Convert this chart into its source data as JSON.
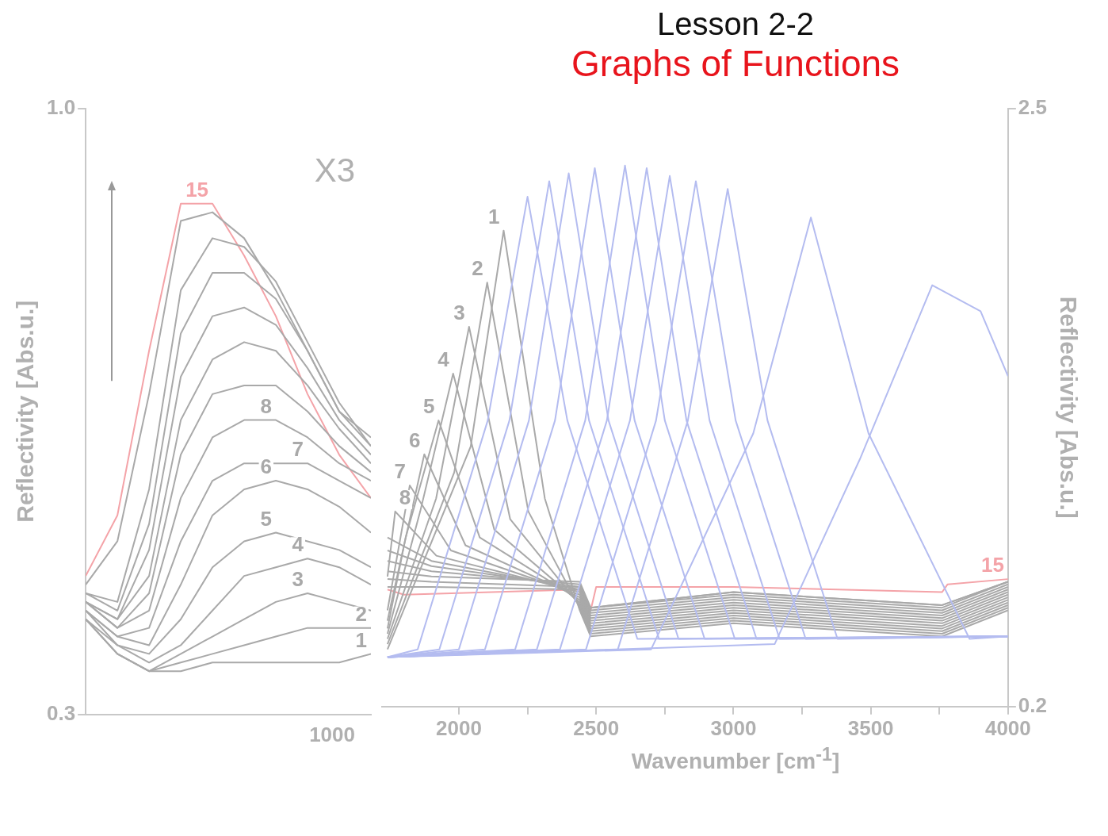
{
  "chart_data": [
    {
      "type": "line",
      "ylabel": "Reflectivity [Abs.u.]",
      "annotations": [
        "X3",
        "1000"
      ],
      "categories": [
        null,
        null,
        null,
        null,
        null,
        null,
        null,
        null,
        null,
        null
      ],
      "ylim": [
        0.3,
        1.0
      ],
      "yticks": [
        0.3,
        {
          "value": 1.0,
          "label": "1.0"
        }
      ],
      "series": [
        {
          "name": "1",
          "color": "#a9a9a9",
          "values": [
            0.41,
            0.37,
            0.35,
            0.35,
            0.36,
            0.36,
            0.36,
            0.36,
            0.36,
            0.37
          ]
        },
        {
          "name": "2",
          "color": "#a9a9a9",
          "values": [
            0.41,
            0.37,
            0.35,
            0.36,
            0.37,
            0.38,
            0.39,
            0.4,
            0.4,
            0.4
          ]
        },
        {
          "name": "3",
          "color": "#a9a9a9",
          "values": [
            0.41,
            0.37,
            0.35,
            0.37,
            0.39,
            0.41,
            0.43,
            0.44,
            0.43,
            0.42
          ]
        },
        {
          "name": "4",
          "color": "#a9a9a9",
          "values": [
            0.41,
            0.38,
            0.36,
            0.38,
            0.42,
            0.46,
            0.47,
            0.48,
            0.47,
            0.45
          ]
        },
        {
          "name": "5",
          "color": "#a9a9a9",
          "values": [
            0.42,
            0.38,
            0.37,
            0.41,
            0.47,
            0.5,
            0.51,
            0.5,
            0.49,
            0.47
          ]
        },
        {
          "name": "6",
          "color": "#a9a9a9",
          "values": [
            0.42,
            0.39,
            0.38,
            0.45,
            0.53,
            0.56,
            0.57,
            0.56,
            0.54,
            0.51
          ]
        },
        {
          "name": "7",
          "color": "#a9a9a9",
          "values": [
            0.42,
            0.39,
            0.4,
            0.5,
            0.57,
            0.59,
            0.59,
            0.59,
            0.57,
            0.55
          ]
        },
        {
          "name": "8",
          "color": "#a9a9a9",
          "values": [
            0.43,
            0.4,
            0.42,
            0.55,
            0.62,
            0.64,
            0.64,
            0.62,
            0.59,
            0.57
          ]
        },
        {
          "color": "#a9a9a9",
          "values": [
            0.43,
            0.4,
            0.44,
            0.6,
            0.67,
            0.68,
            0.68,
            0.65,
            0.61,
            0.58
          ]
        },
        {
          "color": "#a9a9a9",
          "values": [
            0.43,
            0.41,
            0.46,
            0.64,
            0.71,
            0.73,
            0.72,
            0.68,
            0.63,
            0.59
          ]
        },
        {
          "color": "#a9a9a9",
          "values": [
            0.43,
            0.41,
            0.49,
            0.69,
            0.76,
            0.77,
            0.75,
            0.7,
            0.64,
            0.6
          ]
        },
        {
          "color": "#a9a9a9",
          "values": [
            0.44,
            0.42,
            0.52,
            0.74,
            0.81,
            0.81,
            0.78,
            0.72,
            0.65,
            0.61
          ]
        },
        {
          "color": "#a9a9a9",
          "values": [
            0.44,
            0.43,
            0.56,
            0.79,
            0.85,
            0.84,
            0.8,
            0.73,
            0.66,
            0.61
          ]
        },
        {
          "color": "#a9a9a9",
          "values": [
            0.45,
            0.5,
            0.67,
            0.87,
            0.88,
            0.85,
            0.79,
            0.72,
            0.65,
            0.62
          ]
        },
        {
          "name": "15",
          "color": "#f4a3a8",
          "values": [
            0.46,
            0.53,
            0.72,
            0.89,
            0.89,
            0.83,
            0.76,
            0.67,
            0.6,
            0.55
          ]
        }
      ]
    },
    {
      "type": "line",
      "title": "Lesson 2-2",
      "subtitle": "Graphs of Functions",
      "xlabel": "Wavenumber [cm$^{-1}$]",
      "y2label": "Reflectivity [Abs.u.]",
      "xlim": [
        1720,
        4000
      ],
      "xticks": [
        2000,
        {
          "value": 2250,
          "label": null
        },
        2500,
        {
          "value": 2750,
          "label": null
        },
        3000,
        {
          "value": 3250,
          "label": null
        },
        3500,
        {
          "value": 3750,
          "label": null
        },
        4000
      ],
      "y2lim": [
        0.2,
        2.5
      ],
      "y2ticks": [
        0.2,
        2.5
      ],
      "series": [
        {
          "color": "#b4bcf0",
          "axis": "y2",
          "x": [
            1740,
            1850,
            2105,
            2250,
            2395,
            2650,
            4000
          ],
          "values": [
            0.39,
            0.42,
            1.3,
            2.16,
            1.3,
            0.46,
            0.47
          ]
        },
        {
          "color": "#b4bcf0",
          "axis": "y2",
          "x": [
            1740,
            1929,
            2184,
            2329,
            2474,
            2729,
            4000
          ],
          "values": [
            0.39,
            0.42,
            1.3,
            2.22,
            1.3,
            0.46,
            0.47
          ]
        },
        {
          "color": "#b4bcf0",
          "axis": "y2",
          "x": [
            1740,
            2000,
            2255,
            2400,
            2545,
            2800,
            4000
          ],
          "values": [
            0.39,
            0.42,
            1.3,
            2.25,
            1.3,
            0.46,
            0.47
          ]
        },
        {
          "color": "#b4bcf0",
          "axis": "y2",
          "x": [
            1740,
            2095,
            2350,
            2495,
            2640,
            2895,
            4000
          ],
          "values": [
            0.39,
            0.42,
            1.3,
            2.27,
            1.3,
            0.46,
            0.47
          ]
        },
        {
          "color": "#b4bcf0",
          "axis": "y2",
          "x": [
            1740,
            2205,
            2460,
            2605,
            2750,
            3005,
            4000
          ],
          "values": [
            0.39,
            0.42,
            1.3,
            2.28,
            1.3,
            0.46,
            0.47
          ]
        },
        {
          "color": "#b4bcf0",
          "axis": "y2",
          "x": [
            1740,
            2284,
            2539,
            2684,
            2829,
            3084,
            4000
          ],
          "values": [
            0.39,
            0.42,
            1.3,
            2.27,
            1.3,
            0.46,
            0.47
          ]
        },
        {
          "color": "#b4bcf0",
          "axis": "y2",
          "x": [
            1740,
            2368,
            2623,
            2768,
            2913,
            3168,
            4000
          ],
          "values": [
            0.39,
            0.42,
            1.3,
            2.24,
            1.3,
            0.46,
            0.47
          ]
        },
        {
          "color": "#b4bcf0",
          "axis": "y2",
          "x": [
            1740,
            2463,
            2718,
            2863,
            3008,
            3263,
            4000
          ],
          "values": [
            0.39,
            0.42,
            1.3,
            2.22,
            1.3,
            0.46,
            0.47
          ]
        },
        {
          "color": "#b4bcf0",
          "axis": "y2",
          "x": [
            1740,
            2579,
            2834,
            2979,
            3124,
            3379,
            4000
          ],
          "values": [
            0.39,
            0.42,
            1.3,
            2.19,
            1.3,
            0.46,
            0.47
          ]
        },
        {
          "color": "#b4bcf0",
          "axis": "y2",
          "x": [
            1740,
            2700,
            3072,
            3282,
            3492,
            3860,
            4000
          ],
          "values": [
            0.39,
            0.42,
            1.25,
            2.08,
            1.25,
            0.46,
            0.47
          ]
        },
        {
          "color": "#b4bcf0",
          "axis": "y2",
          "x": [
            1740,
            3150,
            3460,
            3724,
            3900,
            4000
          ],
          "values": [
            0.39,
            0.44,
            1.15,
            1.82,
            1.72,
            1.47
          ]
        },
        {
          "name": "1",
          "color": "#a9a9a9",
          "axis": "y2",
          "x": [
            1740,
            2043,
            2163,
            2313,
            2440,
            2480,
            3000,
            3760,
            4000
          ],
          "values": [
            0.42,
            1.2,
            2.03,
            1.0,
            0.57,
            0.47,
            0.52,
            0.47,
            0.57
          ]
        },
        {
          "name": "2",
          "color": "#a9a9a9",
          "axis": "y2",
          "x": [
            1740,
            1983,
            2103,
            2253,
            2440,
            2480,
            3000,
            3760,
            4000
          ],
          "values": [
            0.44,
            1.1,
            1.83,
            0.95,
            0.58,
            0.48,
            0.53,
            0.48,
            0.58
          ]
        },
        {
          "name": "3",
          "color": "#a9a9a9",
          "axis": "y2",
          "x": [
            1740,
            1917,
            2037,
            2187,
            2440,
            2480,
            3000,
            3760,
            4000
          ],
          "values": [
            0.46,
            1.0,
            1.66,
            0.92,
            0.59,
            0.49,
            0.54,
            0.49,
            0.59
          ]
        },
        {
          "name": "4",
          "color": "#a9a9a9",
          "axis": "y2",
          "x": [
            1740,
            1859,
            1979,
            2129,
            2440,
            2480,
            3000,
            3760,
            4000
          ],
          "values": [
            0.48,
            0.95,
            1.48,
            0.88,
            0.6,
            0.5,
            0.55,
            0.5,
            0.6
          ]
        },
        {
          "name": "5",
          "color": "#a9a9a9",
          "axis": "y2",
          "x": [
            1740,
            1806,
            1926,
            2076,
            2440,
            2480,
            3000,
            3760,
            4000
          ],
          "values": [
            0.5,
            0.85,
            1.3,
            0.85,
            0.61,
            0.51,
            0.56,
            0.51,
            0.61
          ]
        },
        {
          "name": "6",
          "color": "#a9a9a9",
          "axis": "y2",
          "x": [
            1740,
            1754,
            1874,
            2024,
            2440,
            2480,
            3000,
            3760,
            4000
          ],
          "values": [
            0.53,
            0.6,
            1.17,
            0.82,
            0.62,
            0.52,
            0.57,
            0.52,
            0.62
          ]
        },
        {
          "name": "7",
          "color": "#a9a9a9",
          "axis": "y2",
          "x": [
            1740,
            1821,
            1971,
            2440,
            2480,
            3000,
            3760,
            4000
          ],
          "values": [
            0.57,
            1.05,
            0.8,
            0.63,
            0.53,
            0.58,
            0.53,
            0.63
          ]
        },
        {
          "name": "8",
          "color": "#a9a9a9",
          "axis": "y2",
          "x": [
            1740,
            1768,
            1918,
            2440,
            2480,
            3000,
            3760,
            4000
          ],
          "values": [
            0.7,
            0.95,
            0.78,
            0.64,
            0.54,
            0.59,
            0.54,
            0.64
          ]
        },
        {
          "color": "#a9a9a9",
          "axis": "y2",
          "x": [
            1740,
            1900,
            2440,
            2480,
            3000,
            3760,
            4000
          ],
          "values": [
            0.85,
            0.76,
            0.65,
            0.55,
            0.6,
            0.55,
            0.65
          ]
        },
        {
          "color": "#a9a9a9",
          "axis": "y2",
          "x": [
            1740,
            1900,
            2440,
            2480,
            3000,
            3760,
            4000
          ],
          "values": [
            0.8,
            0.74,
            0.66,
            0.56,
            0.61,
            0.56,
            0.66
          ]
        },
        {
          "color": "#a9a9a9",
          "axis": "y2",
          "x": [
            1740,
            1900,
            2440,
            2480,
            3000,
            3760,
            4000
          ],
          "values": [
            0.76,
            0.72,
            0.67,
            0.57,
            0.62,
            0.57,
            0.67
          ]
        },
        {
          "color": "#a9a9a9",
          "axis": "y2",
          "x": [
            1740,
            1900,
            2440,
            2480,
            3000,
            3760,
            4000
          ],
          "values": [
            0.72,
            0.7,
            0.68,
            0.58,
            0.63,
            0.58,
            0.68
          ]
        },
        {
          "color": "#a9a9a9",
          "axis": "y2",
          "x": [
            1740,
            1900,
            2440,
            2480,
            3000,
            3760,
            4000
          ],
          "values": [
            0.69,
            0.68,
            0.66,
            0.58,
            0.64,
            0.59,
            0.68
          ]
        },
        {
          "color": "#a9a9a9",
          "axis": "y2",
          "x": [
            1740,
            1900,
            2440,
            2480,
            3000,
            3760,
            4000
          ],
          "values": [
            0.66,
            0.66,
            0.65,
            0.58,
            0.64,
            0.59,
            0.68
          ]
        },
        {
          "name": "15",
          "color": "#f4a3a8",
          "axis": "y2",
          "x": [
            1740,
            1800,
            2440,
            2480,
            2500,
            3000,
            3760,
            3780,
            4000
          ],
          "values": [
            0.65,
            0.63,
            0.65,
            0.57,
            0.66,
            0.66,
            0.64,
            0.67,
            0.69
          ]
        }
      ]
    }
  ]
}
